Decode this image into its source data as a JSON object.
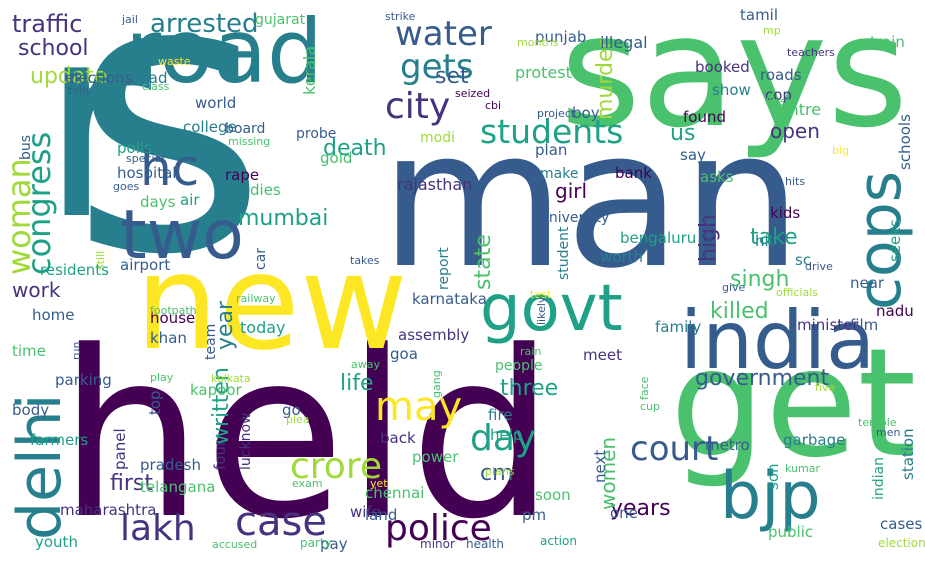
{
  "palette": {
    "p1": "#440154",
    "p2": "#46327e",
    "p3": "#365c8d",
    "p4": "#277f8e",
    "p5": "#1fa187",
    "p6": "#4ac16d",
    "p7": "#a0da39",
    "p8": "#fde725"
  },
  "words": [
    {
      "text": "held",
      "color": "p1"
    },
    {
      "text": "s",
      "color": "p4"
    },
    {
      "text": "man",
      "color": "p3"
    },
    {
      "text": "says",
      "color": "p6"
    },
    {
      "text": "r",
      "color": "p4"
    },
    {
      "text": "road",
      "color": "p4"
    },
    {
      "text": "new",
      "color": "p8"
    },
    {
      "text": "get",
      "color": "p6"
    },
    {
      "text": "india",
      "color": "p3"
    },
    {
      "text": "delhi",
      "color": "p4"
    },
    {
      "text": "govt",
      "color": "p5"
    },
    {
      "text": "bjp",
      "color": "p4"
    },
    {
      "text": "two",
      "color": "p3"
    },
    {
      "text": "hc",
      "color": "p3"
    },
    {
      "text": "cops",
      "color": "p4"
    },
    {
      "text": "police",
      "color": "p1"
    },
    {
      "text": "case",
      "color": "p2"
    },
    {
      "text": "court",
      "color": "p3"
    },
    {
      "text": "lakh",
      "color": "p2"
    },
    {
      "text": "crore",
      "color": "p7"
    },
    {
      "text": "may",
      "color": "p8"
    },
    {
      "text": "day",
      "color": "p5"
    },
    {
      "text": "students",
      "color": "p5"
    },
    {
      "text": "city",
      "color": "p2"
    },
    {
      "text": "water",
      "color": "p3"
    },
    {
      "text": "gets",
      "color": "p4"
    },
    {
      "text": "congress",
      "color": "p5"
    },
    {
      "text": "woman",
      "color": "p7"
    },
    {
      "text": "arrested",
      "color": "p4"
    },
    {
      "text": "traffic",
      "color": "p2"
    },
    {
      "text": "school",
      "color": "p2"
    },
    {
      "text": "update",
      "color": "p7"
    },
    {
      "text": "death",
      "color": "p5"
    },
    {
      "text": "set",
      "color": "p3"
    },
    {
      "text": "murder",
      "color": "p7"
    },
    {
      "text": "us",
      "color": "p5"
    },
    {
      "text": "mumbai",
      "color": "p5"
    },
    {
      "text": "killed",
      "color": "p6"
    },
    {
      "text": "government",
      "color": "p3"
    },
    {
      "text": "three",
      "color": "p5"
    },
    {
      "text": "life",
      "color": "p5"
    },
    {
      "text": "cm",
      "color": "p3"
    },
    {
      "text": "years",
      "color": "p1"
    },
    {
      "text": "work",
      "color": "p2"
    },
    {
      "text": "first",
      "color": "p2"
    },
    {
      "text": "written",
      "color": "p5"
    },
    {
      "text": "year",
      "color": "p4"
    },
    {
      "text": "state",
      "color": "p6"
    },
    {
      "text": "high",
      "color": "p2"
    },
    {
      "text": "singh",
      "color": "p6"
    },
    {
      "text": "take",
      "color": "p5"
    },
    {
      "text": "open",
      "color": "p2"
    },
    {
      "text": "girl",
      "color": "p1"
    },
    {
      "text": "women",
      "color": "p6"
    },
    {
      "text": "today",
      "color": "p5"
    },
    {
      "text": "centre",
      "color": "p6"
    },
    {
      "text": "protest",
      "color": "p6"
    },
    {
      "text": "rajasthan",
      "color": "p2"
    },
    {
      "text": "kerala",
      "color": "p6"
    },
    {
      "text": "gujarat",
      "color": "p6"
    },
    {
      "text": "punjab",
      "color": "p3"
    },
    {
      "text": "illegal",
      "color": "p3"
    },
    {
      "text": "tamil",
      "color": "p3"
    },
    {
      "text": "roads",
      "color": "p3"
    },
    {
      "text": "cop",
      "color": "p2"
    },
    {
      "text": "booked",
      "color": "p2"
    },
    {
      "text": "show",
      "color": "p4"
    },
    {
      "text": "boy",
      "color": "p3"
    },
    {
      "text": "found",
      "color": "p1"
    },
    {
      "text": "train",
      "color": "p6"
    },
    {
      "text": "schools",
      "color": "p3"
    },
    {
      "text": "dead",
      "color": "p4"
    },
    {
      "text": "elections",
      "color": "p3"
    },
    {
      "text": "bus",
      "color": "p3"
    },
    {
      "text": "world",
      "color": "p3"
    },
    {
      "text": "college",
      "color": "p4"
    },
    {
      "text": "board",
      "color": "p3"
    },
    {
      "text": "probe",
      "color": "p3"
    },
    {
      "text": "modi",
      "color": "p7"
    },
    {
      "text": "gold",
      "color": "p6"
    },
    {
      "text": "plan",
      "color": "p3"
    },
    {
      "text": "make",
      "color": "p4"
    },
    {
      "text": "bank",
      "color": "p1"
    },
    {
      "text": "asks",
      "color": "p6"
    },
    {
      "text": "say",
      "color": "p3"
    },
    {
      "text": "kids",
      "color": "p1"
    },
    {
      "text": "seeks",
      "color": "p5"
    },
    {
      "text": "polls",
      "color": "p5"
    },
    {
      "text": "hospital",
      "color": "p3"
    },
    {
      "text": "rape",
      "color": "p1"
    },
    {
      "text": "dies",
      "color": "p6"
    },
    {
      "text": "days",
      "color": "p6"
    },
    {
      "text": "air",
      "color": "p5"
    },
    {
      "text": "car",
      "color": "p3"
    },
    {
      "text": "university",
      "color": "p3"
    },
    {
      "text": "bengaluru",
      "color": "p5"
    },
    {
      "text": "worth",
      "color": "p4"
    },
    {
      "text": "hit",
      "color": "p4"
    },
    {
      "text": "sc",
      "color": "p4"
    },
    {
      "text": "near",
      "color": "p3"
    },
    {
      "text": "chief",
      "color": "p3"
    },
    {
      "text": "report",
      "color": "p4"
    },
    {
      "text": "residents",
      "color": "p5"
    },
    {
      "text": "airport",
      "color": "p3"
    },
    {
      "text": "student",
      "color": "p4"
    },
    {
      "text": "karnataka",
      "color": "p3"
    },
    {
      "text": "family",
      "color": "p4"
    },
    {
      "text": "minister",
      "color": "p2"
    },
    {
      "text": "film",
      "color": "p3"
    },
    {
      "text": "nadu",
      "color": "p1"
    },
    {
      "text": "home",
      "color": "p3"
    },
    {
      "text": "house",
      "color": "p1"
    },
    {
      "text": "khan",
      "color": "p3"
    },
    {
      "text": "team",
      "color": "p3"
    },
    {
      "text": "time",
      "color": "p6"
    },
    {
      "text": "assembly",
      "color": "p2"
    },
    {
      "text": "goa",
      "color": "p3"
    },
    {
      "text": "meet",
      "color": "p2"
    },
    {
      "text": "people",
      "color": "p6"
    },
    {
      "text": "parking",
      "color": "p3"
    },
    {
      "text": "kapoor",
      "color": "p6"
    },
    {
      "text": "top",
      "color": "p3"
    },
    {
      "text": "body",
      "color": "p3"
    },
    {
      "text": "go",
      "color": "p3"
    },
    {
      "text": "fire",
      "color": "p4"
    },
    {
      "text": "help",
      "color": "p5"
    },
    {
      "text": "back",
      "color": "p2"
    },
    {
      "text": "power",
      "color": "p6"
    },
    {
      "text": "farmers",
      "color": "p5"
    },
    {
      "text": "panel",
      "color": "p2"
    },
    {
      "text": "four",
      "color": "p2"
    },
    {
      "text": "lucknow",
      "color": "p2"
    },
    {
      "text": "pradesh",
      "color": "p3"
    },
    {
      "text": "chennai",
      "color": "p6"
    },
    {
      "text": "next",
      "color": "p3"
    },
    {
      "text": "metro",
      "color": "p3"
    },
    {
      "text": "garbage",
      "color": "p4"
    },
    {
      "text": "son",
      "color": "p5"
    },
    {
      "text": "indian",
      "color": "p5"
    },
    {
      "text": "station",
      "color": "p4"
    },
    {
      "text": "telangana",
      "color": "p6"
    },
    {
      "text": "maharashtra",
      "color": "p2"
    },
    {
      "text": "wife",
      "color": "p2"
    },
    {
      "text": "land",
      "color": "p3"
    },
    {
      "text": "soon",
      "color": "p6"
    },
    {
      "text": "pm",
      "color": "p3"
    },
    {
      "text": "one",
      "color": "p3"
    },
    {
      "text": "public",
      "color": "p6"
    },
    {
      "text": "cases",
      "color": "p3"
    },
    {
      "text": "youth",
      "color": "p5"
    },
    {
      "text": "pay",
      "color": "p3"
    },
    {
      "text": "accused",
      "color": "p6"
    },
    {
      "text": "party",
      "color": "p6"
    },
    {
      "text": "minor",
      "color": "p2"
    },
    {
      "text": "health",
      "color": "p3"
    },
    {
      "text": "action",
      "color": "p5"
    },
    {
      "text": "election",
      "color": "p7"
    },
    {
      "text": "jail",
      "color": "p3"
    },
    {
      "text": "strike",
      "color": "p3"
    },
    {
      "text": "mp",
      "color": "p7"
    },
    {
      "text": "teachers",
      "color": "p2"
    },
    {
      "text": "waste",
      "color": "p8"
    },
    {
      "text": "class",
      "color": "p6"
    },
    {
      "text": "tells",
      "color": "p3"
    },
    {
      "text": "months",
      "color": "p7"
    },
    {
      "text": "seized",
      "color": "p1"
    },
    {
      "text": "cbi",
      "color": "p1"
    },
    {
      "text": "project",
      "color": "p3"
    },
    {
      "text": "boss",
      "color": "p6"
    },
    {
      "text": "special",
      "color": "p3"
    },
    {
      "text": "missing",
      "color": "p6"
    },
    {
      "text": "goes",
      "color": "p3"
    },
    {
      "text": "big",
      "color": "p8"
    },
    {
      "text": "hits",
      "color": "p3"
    },
    {
      "text": "still",
      "color": "p7"
    },
    {
      "text": "takes",
      "color": "p3"
    },
    {
      "text": "footpath",
      "color": "p6"
    },
    {
      "text": "railway",
      "color": "p6"
    },
    {
      "text": "test",
      "color": "p8"
    },
    {
      "text": "drive",
      "color": "p3"
    },
    {
      "text": "officials",
      "color": "p7"
    },
    {
      "text": "give",
      "color": "p3"
    },
    {
      "text": "run",
      "color": "p3"
    },
    {
      "text": "play",
      "color": "p6"
    },
    {
      "text": "kolkata",
      "color": "p7"
    },
    {
      "text": "away",
      "color": "p6"
    },
    {
      "text": "gang",
      "color": "p6"
    },
    {
      "text": "likely",
      "color": "p3"
    },
    {
      "text": "rain",
      "color": "p6"
    },
    {
      "text": "cup",
      "color": "p6"
    },
    {
      "text": "face",
      "color": "p6"
    },
    {
      "text": "five",
      "color": "p7"
    },
    {
      "text": "temple",
      "color": "p6"
    },
    {
      "text": "men",
      "color": "p3"
    },
    {
      "text": "plea",
      "color": "p7"
    },
    {
      "text": "yet",
      "color": "p8"
    },
    {
      "text": "exam",
      "color": "p6"
    },
    {
      "text": "plans",
      "color": "p7"
    },
    {
      "text": "kumar",
      "color": "p6"
    },
    {
      "text": "hyderabad",
      "color": "p3"
    },
    {
      "text": "injured",
      "color": "p3"
    }
  ]
}
